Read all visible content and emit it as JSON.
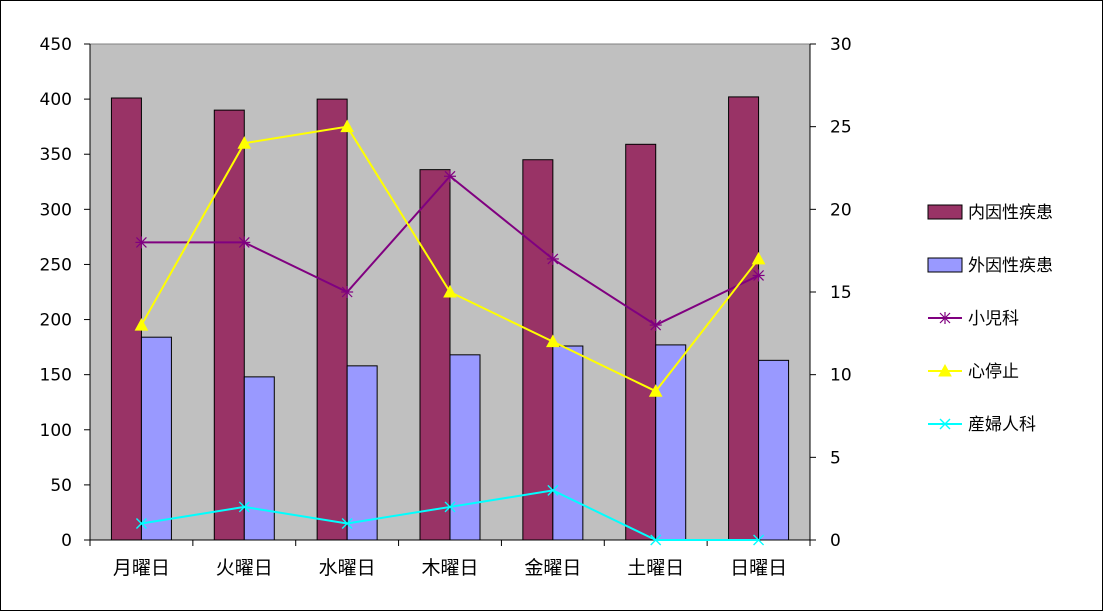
{
  "chart_data": {
    "type": "bar",
    "categories": [
      "月曜日",
      "火曜日",
      "水曜日",
      "木曜日",
      "金曜日",
      "土曜日",
      "日曜日"
    ],
    "y_left": {
      "min": 0,
      "max": 450,
      "step": 50
    },
    "y_right": {
      "min": 0,
      "max": 30,
      "step": 5
    },
    "plot_background": "#c0c0c0",
    "grid": false,
    "legend_position": "right",
    "series": [
      {
        "name": "内因性疾患",
        "kind": "bar",
        "axis": "left",
        "color": "#993366",
        "values": [
          401,
          390,
          400,
          336,
          345,
          359,
          402
        ]
      },
      {
        "name": "外因性疾患",
        "kind": "bar",
        "axis": "left",
        "color": "#9999ff",
        "values": [
          184,
          148,
          158,
          168,
          176,
          177,
          163
        ]
      },
      {
        "name": "小児科",
        "kind": "line",
        "axis": "right",
        "color": "#800080",
        "marker": "star",
        "values": [
          18,
          18,
          15,
          22,
          17,
          13,
          16
        ]
      },
      {
        "name": "心停止",
        "kind": "line",
        "axis": "right",
        "color": "#ffff00",
        "marker": "triangle",
        "values": [
          13,
          24,
          25,
          15,
          12,
          9,
          17
        ]
      },
      {
        "name": "産婦人科",
        "kind": "line",
        "axis": "right",
        "color": "#00ffff",
        "marker": "x",
        "values": [
          1,
          2,
          1,
          2,
          3,
          0,
          0
        ]
      }
    ]
  }
}
